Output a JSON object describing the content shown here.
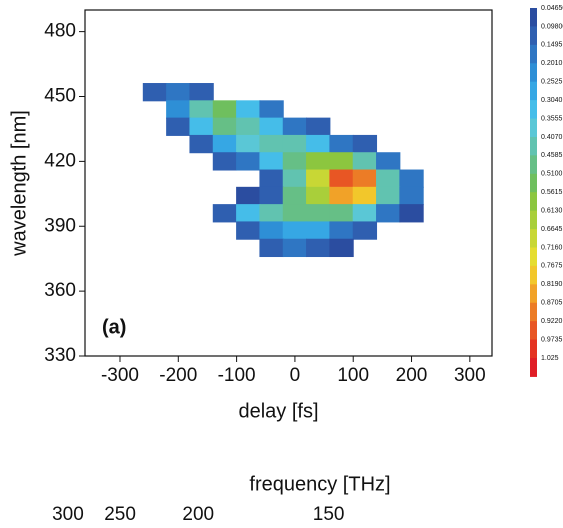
{
  "chart_data": [
    {
      "type": "heatmap",
      "xlabel": "delay [fs]",
      "ylabel": "wavelength [nm]",
      "annotation": "(a)",
      "x": [
        -240,
        -200,
        -160,
        -120,
        -80,
        -40,
        0,
        40,
        80,
        120,
        160,
        200
      ],
      "y": [
        452,
        444,
        436,
        428,
        420,
        412,
        404,
        396,
        388,
        380
      ],
      "z": [
        [
          0.1,
          0.15,
          0.1,
          null,
          null,
          null,
          null,
          null,
          null,
          null,
          null,
          null
        ],
        [
          null,
          0.25,
          0.45,
          0.55,
          0.35,
          0.15,
          null,
          null,
          null,
          null,
          null,
          null
        ],
        [
          null,
          0.1,
          0.35,
          0.5,
          0.45,
          0.35,
          0.2,
          0.1,
          null,
          null,
          null,
          null
        ],
        [
          null,
          null,
          0.1,
          0.3,
          0.4,
          0.45,
          0.45,
          0.35,
          0.2,
          0.1,
          null,
          null
        ],
        [
          null,
          null,
          null,
          0.1,
          0.2,
          0.35,
          0.5,
          0.6,
          0.6,
          0.45,
          0.2,
          null
        ],
        [
          null,
          null,
          null,
          null,
          null,
          0.1,
          0.45,
          0.7,
          0.95,
          0.9,
          0.45,
          0.15
        ],
        [
          null,
          null,
          null,
          null,
          0.05,
          0.1,
          0.5,
          0.65,
          0.85,
          0.8,
          0.45,
          0.15
        ],
        [
          null,
          null,
          null,
          0.1,
          0.35,
          0.45,
          0.5,
          0.5,
          0.5,
          0.4,
          0.2,
          0.05
        ],
        [
          null,
          null,
          null,
          null,
          0.1,
          0.25,
          0.3,
          0.3,
          0.2,
          0.1,
          null,
          null
        ],
        [
          null,
          null,
          null,
          null,
          null,
          0.1,
          0.15,
          0.1,
          0.05,
          null,
          null,
          null
        ]
      ],
      "xlim": [
        -360,
        338
      ],
      "ylim": [
        330,
        490
      ],
      "xticks": [
        -300,
        -200,
        -100,
        0,
        100,
        200,
        300
      ],
      "yticks": [
        330,
        360,
        390,
        420,
        450,
        480
      ],
      "colorbar": {
        "levels": [
          {
            "value": 0.0465,
            "label": "0.04650"
          },
          {
            "value": 0.098,
            "label": "0.09800"
          },
          0.1495,
          {
            "value": 0.201,
            "label": "0.2010"
          },
          0.2525,
          {
            "value": 0.304,
            "label": "0.3040"
          },
          0.3555,
          {
            "value": 0.407,
            "label": "0.4070"
          },
          0.4585,
          {
            "value": 0.51,
            "label": "0.5100"
          },
          0.5615,
          {
            "value": 0.613,
            "label": "0.6130"
          },
          0.6645,
          {
            "value": 0.716,
            "label": "0.7160"
          },
          0.7675,
          {
            "value": 0.819,
            "label": "0.8190"
          },
          0.8705,
          {
            "value": 0.922,
            "label": "0.9220"
          },
          0.9735,
          1.025
        ],
        "colors": [
          "#2b4da0",
          "#2f5fb0",
          "#2f76c3",
          "#2e8fd6",
          "#36a7e4",
          "#45bde9",
          "#5ac7d6",
          "#61c3b0",
          "#66bf86",
          "#6fbf5e",
          "#8cc63f",
          "#a9cf3a",
          "#c8d735",
          "#e5dd30",
          "#f2c72b",
          "#f1a228",
          "#ec7c26",
          "#e85624",
          "#e43322",
          "#e01e26"
        ]
      }
    },
    {
      "type": "axis",
      "xlabel": "frequency [THz]",
      "xscale": "reciprocal",
      "xlim": [
        336,
        118
      ],
      "xticks": [
        300,
        250,
        200,
        150
      ]
    }
  ]
}
